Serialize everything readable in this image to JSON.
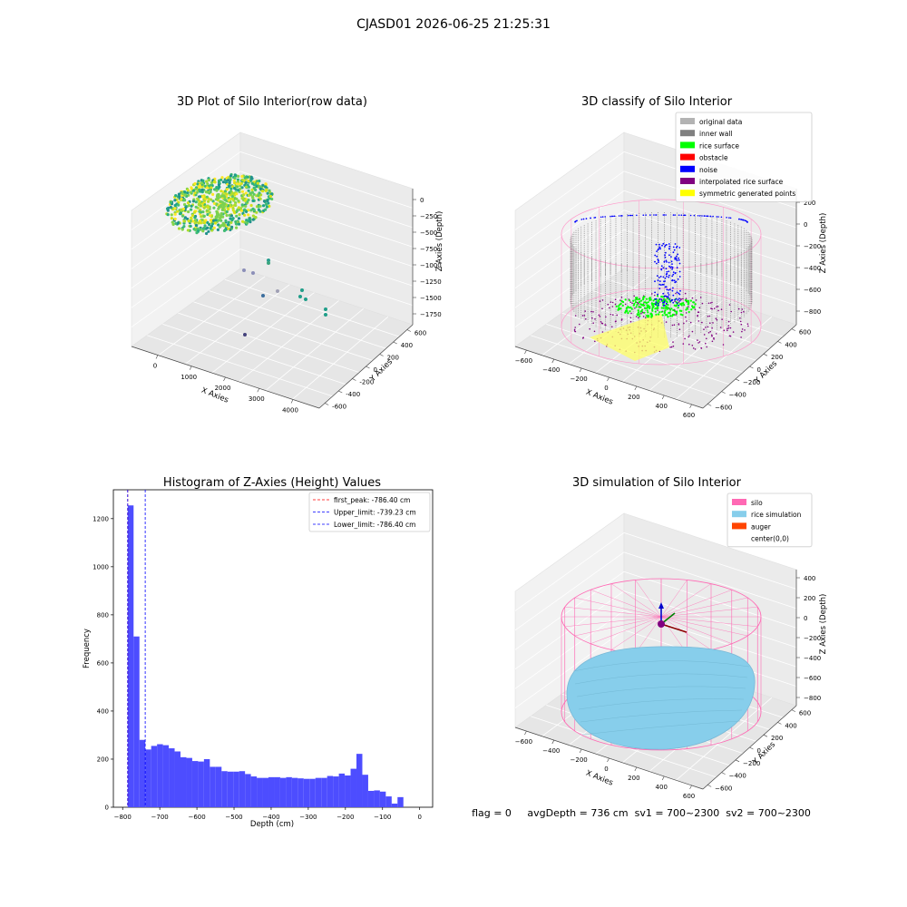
{
  "suptitle": "CJASD01 2026-06-25 21:25:31",
  "footer": "flag = 0     avgDepth = 736 cm  sv1 = 700~2300  sv2 = 700~2300",
  "colors": {
    "gray_light": "#b3b3b3",
    "gray_dark": "#808080",
    "green": "#00ff00",
    "red": "#ff0000",
    "blue": "#0000ff",
    "purple": "#800080",
    "yellow": "#ffff00",
    "pink": "#ff69b4",
    "skyblue": "#87ceeb",
    "orange": "#ff4500",
    "hist_blue": "#4d4dff"
  },
  "chart_data": [
    {
      "type": "scatter3d",
      "title": "3D Plot of Silo Interior(row data)",
      "xlabel": "X Axies",
      "ylabel": "Y Axies",
      "zlabel": "Z Axies (Depth)",
      "xticks": [
        "0",
        "1000",
        "2000",
        "3000",
        "4000"
      ],
      "yticks": [
        "-600",
        "-400",
        "-200",
        "0",
        "200",
        "400",
        "600"
      ],
      "zticks": [
        "0",
        "−250",
        "−500",
        "−750",
        "−1000",
        "−1250",
        "−1500",
        "−1750"
      ],
      "colormap": "viridis"
    },
    {
      "type": "scatter3d",
      "title": "3D classify of Silo Interior",
      "xlabel": "X Axies",
      "ylabel": "Y Axies",
      "zlabel": "Z Axies (Depth)",
      "xticks": [
        "−600",
        "−400",
        "−200",
        "0",
        "200",
        "400",
        "600"
      ],
      "yticks": [
        "−600",
        "−400",
        "−200",
        "0",
        "200",
        "400",
        "600"
      ],
      "zticks": [
        "200",
        "0",
        "−200",
        "−400",
        "−600",
        "−800"
      ],
      "legend": [
        {
          "label": "original data",
          "color": "#b3b3b3"
        },
        {
          "label": "inner wall",
          "color": "#808080"
        },
        {
          "label": "rice surface",
          "color": "#00ff00"
        },
        {
          "label": "obstacle",
          "color": "#ff0000"
        },
        {
          "label": "noise",
          "color": "#0000ff"
        },
        {
          "label": "interpolated rice surface",
          "color": "#800080"
        },
        {
          "label": "symmetric generated points",
          "color": "#ffff00"
        }
      ],
      "legend_loc": "upper right"
    },
    {
      "type": "bar",
      "title": "Histogram of Z-Axies (Height) Values",
      "xlabel": "Depth (cm)",
      "ylabel": "Frequency",
      "xlim": [
        -825,
        35
      ],
      "ylim": [
        0,
        1320
      ],
      "xticks": [
        -800,
        -700,
        -600,
        -500,
        -400,
        -300,
        -200,
        -100,
        0
      ],
      "xtick_labels": [
        "−800",
        "−700",
        "−600",
        "−500",
        "−400",
        "−300",
        "−200",
        "−100",
        "0"
      ],
      "yticks": [
        0,
        200,
        400,
        600,
        800,
        1000,
        1200
      ],
      "bin_start": -786.4,
      "bin_width": 15.8,
      "values": [
        1255,
        710,
        280,
        240,
        255,
        262,
        258,
        245,
        232,
        208,
        205,
        192,
        190,
        200,
        168,
        168,
        150,
        148,
        148,
        150,
        138,
        128,
        122,
        122,
        125,
        125,
        122,
        125,
        122,
        120,
        118,
        118,
        122,
        122,
        130,
        128,
        140,
        132,
        160,
        222,
        135,
        68,
        70,
        65,
        45,
        15,
        42
      ],
      "vlines": [
        {
          "label": "first_peak: -786.40 cm",
          "x": -786.4,
          "color": "#ff0000"
        },
        {
          "label": "Upper_limit: -739.23 cm",
          "x": -739.23,
          "color": "#0000ff"
        },
        {
          "label": "Lower_limit: -786.40 cm",
          "x": -786.4,
          "color": "#0000ff"
        }
      ],
      "legend_loc": "upper right"
    },
    {
      "type": "scatter3d",
      "title": "3D simulation of Silo Interior",
      "xlabel": "X Axies",
      "ylabel": "Y Axies",
      "zlabel": "Z Axies (Depth)",
      "xticks": [
        "−600",
        "−400",
        "−200",
        "0",
        "200",
        "400",
        "600"
      ],
      "yticks": [
        "−600",
        "−400",
        "−200",
        "0",
        "200",
        "400",
        "600"
      ],
      "zticks": [
        "400",
        "200",
        "0",
        "−200",
        "−400",
        "−600",
        "−800"
      ],
      "legend": [
        {
          "label": "silo",
          "color": "#ff69b4"
        },
        {
          "label": "rice simulation",
          "color": "#87ceeb"
        },
        {
          "label": "auger",
          "color": "#ff4500"
        },
        {
          "label": "center(0,0)",
          "color": ""
        }
      ],
      "legend_loc": "upper right"
    }
  ]
}
